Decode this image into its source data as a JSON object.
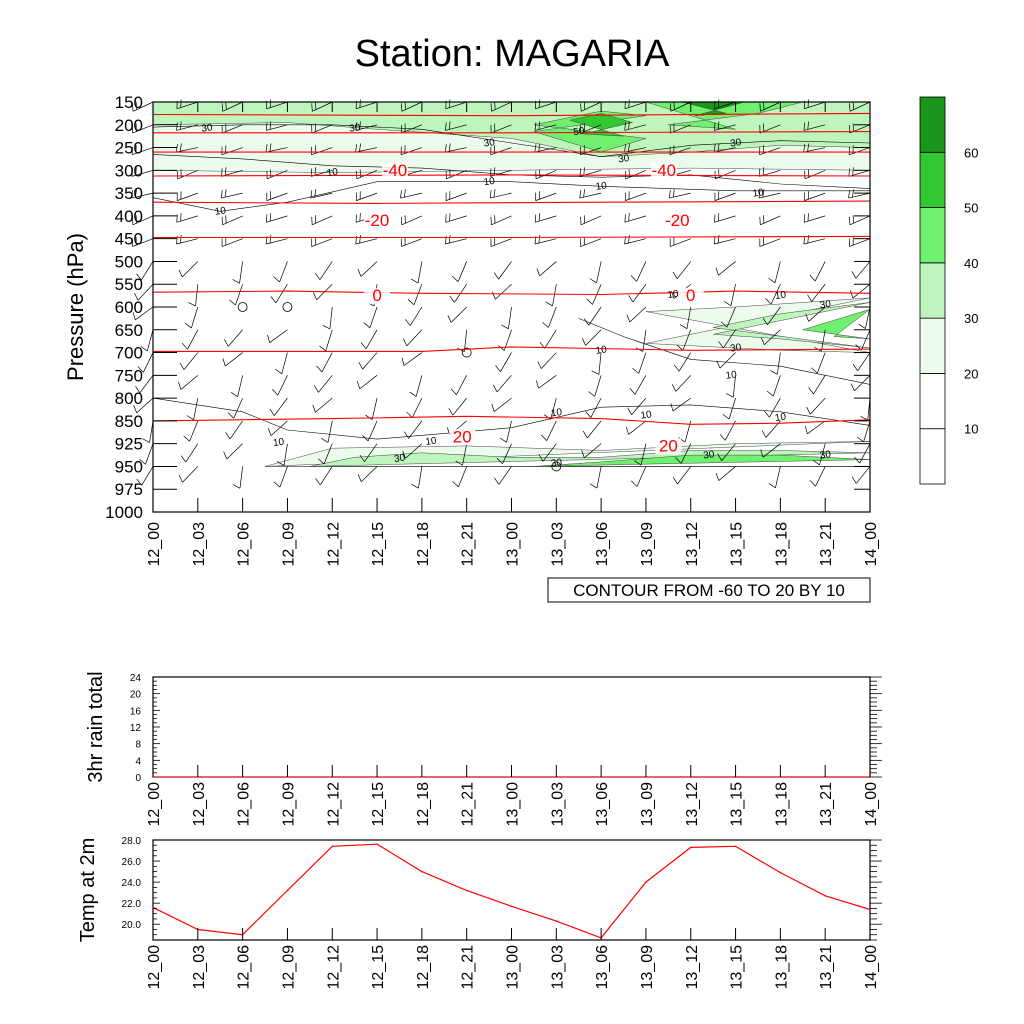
{
  "title": "Station: MAGARIA",
  "time_labels": [
    "12_00",
    "12_03",
    "12_06",
    "12_09",
    "12_12",
    "12_15",
    "12_18",
    "12_21",
    "13_00",
    "13_03",
    "13_06",
    "13_09",
    "13_12",
    "13_15",
    "13_18",
    "13_21",
    "14_00"
  ],
  "colors": {
    "isotherm": "#ff0000",
    "contour": "#000000",
    "temp_line": "#ff0000",
    "shade_20_30": "#ecfbec",
    "shade_30_40": "#bdf5bd",
    "shade_40_50": "#6ff06f",
    "shade_50_60": "#32c832",
    "shade_60_plus": "#1a961a"
  },
  "chart_data": [
    {
      "type": "heatmap",
      "title": "Station: MAGARIA",
      "ylabel": "Pressure (hPa)",
      "pressure_levels": [
        150,
        200,
        250,
        300,
        350,
        400,
        450,
        500,
        550,
        600,
        650,
        700,
        750,
        800,
        850,
        925,
        950,
        975,
        1000
      ],
      "y_tick_labels": [
        "150",
        "200",
        "250",
        "300",
        "350",
        "400",
        "450",
        "500",
        "550",
        "600",
        "650",
        "700",
        "750",
        "800",
        "850",
        "925",
        "950",
        "975",
        "1000"
      ],
      "info_label": "CONTOUR FROM -60 TO 20 BY 10",
      "colorbar_labels": [
        "10",
        "20",
        "30",
        "40",
        "50",
        "60"
      ],
      "isotherm_labels": [
        {
          "text": "-40",
          "time": 5.4,
          "level": 3.15
        },
        {
          "text": "-40",
          "time": 11.4,
          "level": 3.15
        },
        {
          "text": "-20",
          "time": 5.0,
          "level": 5.35
        },
        {
          "text": "-20",
          "time": 11.7,
          "level": 5.35
        },
        {
          "text": "0",
          "time": 5.0,
          "level": 8.65
        },
        {
          "text": "0",
          "time": 12.0,
          "level": 8.65
        },
        {
          "text": "20",
          "time": 6.9,
          "level": 14.85
        },
        {
          "text": "20",
          "time": 11.5,
          "level": 15.25
        }
      ],
      "wind_labels": [
        {
          "text": "30",
          "time": 1.2,
          "level": 1.1
        },
        {
          "text": "30",
          "time": 4.5,
          "level": 1.1
        },
        {
          "text": "30",
          "time": 7.5,
          "level": 1.75
        },
        {
          "text": "30",
          "time": 10.5,
          "level": 2.45
        },
        {
          "text": "30",
          "time": 13.0,
          "level": 1.75
        },
        {
          "text": "50",
          "time": 9.5,
          "level": 1.25
        },
        {
          "text": "10",
          "time": 4.0,
          "level": 3.05
        },
        {
          "text": "10",
          "time": 7.5,
          "level": 3.45
        },
        {
          "text": "10",
          "time": 1.5,
          "level": 4.75
        },
        {
          "text": "10",
          "time": 10.0,
          "level": 3.65
        },
        {
          "text": "10",
          "time": 13.5,
          "level": 3.95
        },
        {
          "text": "10",
          "time": 11.6,
          "level": 8.4
        },
        {
          "text": "10",
          "time": 14.0,
          "level": 8.45
        },
        {
          "text": "30",
          "time": 15.0,
          "level": 8.85
        },
        {
          "text": "10",
          "time": 10.0,
          "level": 10.85
        },
        {
          "text": "30",
          "time": 13.0,
          "level": 10.75
        },
        {
          "text": "10",
          "time": 12.9,
          "level": 11.95
        },
        {
          "text": "10",
          "time": 9.0,
          "level": 13.6
        },
        {
          "text": "10",
          "time": 11.0,
          "level": 13.7
        },
        {
          "text": "10",
          "time": 14.0,
          "level": 13.8
        },
        {
          "text": "10",
          "time": 2.8,
          "level": 14.9
        },
        {
          "text": "10",
          "time": 6.2,
          "level": 14.85
        },
        {
          "text": "30",
          "time": 5.5,
          "level": 15.6
        },
        {
          "text": "30",
          "time": 9.0,
          "level": 15.8
        },
        {
          "text": "30",
          "time": 12.4,
          "level": 15.45
        },
        {
          "text": "30",
          "time": 15.0,
          "level": 15.45
        }
      ],
      "calm_points": [
        {
          "time": 2,
          "level": 9
        },
        {
          "time": 3,
          "level": 9
        },
        {
          "time": 7,
          "level": 11
        },
        {
          "time": 9,
          "level": 16
        }
      ]
    },
    {
      "type": "line",
      "ylabel": "3hr rain total",
      "ylim": [
        0,
        24
      ],
      "y_tick_labels": [
        "0",
        "4",
        "8",
        "12",
        "16",
        "20",
        "24"
      ],
      "values": [
        0,
        0,
        0,
        0,
        0,
        0,
        0,
        0,
        0,
        0,
        0,
        0,
        0,
        0,
        0,
        0,
        0
      ]
    },
    {
      "type": "line",
      "ylabel": "Temp at 2m",
      "ylim": [
        18.5,
        28.0
      ],
      "y_tick_labels": [
        "20.0",
        "22.0",
        "24.0",
        "26.0",
        "28.0"
      ],
      "y_ticks": [
        20,
        22,
        24,
        26,
        28
      ],
      "values": [
        21.6,
        19.5,
        19.0,
        23.2,
        27.4,
        27.6,
        25.0,
        23.2,
        21.7,
        20.3,
        18.7,
        24.0,
        27.3,
        27.4,
        24.9,
        22.7,
        21.4
      ]
    }
  ]
}
